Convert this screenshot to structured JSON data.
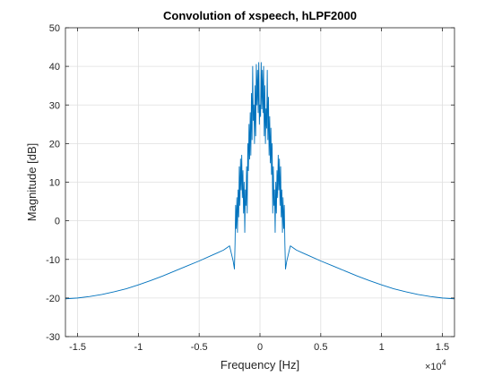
{
  "chart_data": {
    "type": "line",
    "title": "Convolution of xspeech, hLPF2000",
    "xlabel": "Frequency [Hz]",
    "ylabel": "Magnitude [dB]",
    "x_exponent_label": "×10",
    "x_exponent_power": "4",
    "xlim": [
      -16000,
      16000
    ],
    "ylim": [
      -30,
      50
    ],
    "xticks": [
      -15000,
      -10000,
      -5000,
      0,
      5000,
      10000,
      15000
    ],
    "xtick_labels": [
      "-1.5",
      "-1",
      "-0.5",
      "0",
      "0.5",
      "1",
      "1.5"
    ],
    "yticks": [
      -30,
      -20,
      -10,
      0,
      10,
      20,
      30,
      40,
      50
    ],
    "ytick_labels": [
      "-30",
      "-20",
      "-10",
      "0",
      "10",
      "20",
      "30",
      "40",
      "50"
    ],
    "grid": true,
    "line_color": "#0072BD",
    "series": [
      {
        "x": [
          -16000,
          -15000,
          -14000,
          -13000,
          -12000,
          -11000,
          -10000,
          -9000,
          -8000,
          -7000,
          -6000,
          -5000,
          -4000,
          -3500,
          -3000,
          -2500,
          -2200,
          -2100,
          -2050,
          -2000,
          -1950,
          -1900,
          -1850,
          -1800,
          -1750,
          -1700,
          -1650,
          -1600,
          -1550,
          -1500,
          -1450,
          -1400,
          -1350,
          -1300,
          -1250,
          -1200,
          -1150,
          -1100,
          -1050,
          -1000,
          -950,
          -900,
          -850,
          -800,
          -750,
          -700,
          -650,
          -600,
          -550,
          -500,
          -450,
          -400,
          -350,
          -300,
          -250,
          -200,
          -150,
          -100,
          -50,
          0,
          50,
          100,
          150,
          200,
          250,
          300,
          350,
          400,
          450,
          500,
          550,
          600,
          650,
          700,
          750,
          800,
          850,
          900,
          950,
          1000,
          1050,
          1100,
          1150,
          1200,
          1250,
          1300,
          1350,
          1400,
          1450,
          1500,
          1550,
          1600,
          1650,
          1700,
          1750,
          1800,
          1850,
          1900,
          1950,
          2000,
          2050,
          2100,
          2200,
          2500,
          3000,
          3500,
          4000,
          5000,
          6000,
          7000,
          8000,
          9000,
          10000,
          11000,
          12000,
          13000,
          14000,
          15000,
          16000
        ],
        "y": [
          -20.2,
          -20.0,
          -19.6,
          -19.1,
          -18.4,
          -17.6,
          -16.6,
          -15.5,
          -14.3,
          -13.0,
          -11.7,
          -10.4,
          -9.0,
          -8.3,
          -7.6,
          -6.5,
          -10.5,
          -12.5,
          -6.0,
          4.0,
          -2.0,
          6.0,
          -3.0,
          8.0,
          1.0,
          14.0,
          4.0,
          16.0,
          8.0,
          17.0,
          6.0,
          13.0,
          2.0,
          10.0,
          -3.0,
          8.0,
          4.0,
          14.0,
          2.0,
          20.0,
          13.0,
          25.0,
          16.0,
          28.0,
          17.0,
          33.0,
          21.0,
          40.0,
          26.0,
          30.0,
          20.0,
          35.0,
          22.0,
          40.5,
          30.0,
          39.0,
          28.0,
          41.0,
          25.0,
          30.0,
          27.0,
          41.0,
          29.0,
          39.0,
          28.0,
          40.0,
          22.0,
          35.0,
          20.0,
          29.0,
          24.0,
          39.0,
          21.0,
          32.0,
          17.0,
          27.0,
          15.0,
          24.0,
          12.0,
          20.0,
          2.0,
          14.0,
          4.0,
          8.0,
          -3.0,
          10.0,
          2.0,
          13.0,
          6.0,
          17.0,
          8.0,
          16.0,
          4.0,
          14.0,
          1.0,
          8.0,
          -3.0,
          6.0,
          -2.0,
          4.0,
          -6.0,
          -12.5,
          -10.5,
          -6.5,
          -7.6,
          -8.3,
          -9.0,
          -10.4,
          -11.7,
          -13.0,
          -14.3,
          -15.5,
          -16.6,
          -17.6,
          -18.4,
          -19.1,
          -19.6,
          -20.0,
          -20.2
        ]
      }
    ]
  }
}
